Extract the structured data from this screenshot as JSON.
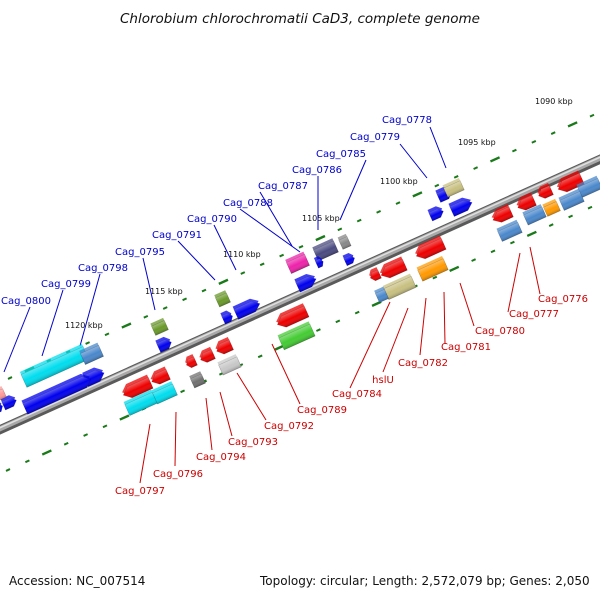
{
  "title": "Chlorobium chlorochromatii CaD3, complete genome",
  "accession": "Accession: NC_007514",
  "summary": "Topology: circular; Length: 2,572,079 bp; Genes: 2,050",
  "colors": {
    "plus_label": "#0000cc",
    "minus_label": "#cc0000",
    "tick": "#1a7a1a",
    "backbone": "#808080"
  },
  "ticks": [
    "1090 kbp",
    "1095 kbp",
    "1100 kbp",
    "1105 kbp",
    "1110 kbp",
    "1115 kbp",
    "1120 kbp"
  ],
  "plus_genes": [
    "Cag_0778",
    "Cag_0779",
    "Cag_0785",
    "Cag_0786",
    "Cag_0787",
    "Cag_0788",
    "Cag_0790",
    "Cag_0791",
    "Cag_0795",
    "Cag_0798",
    "Cag_0799",
    "Cag_0800"
  ],
  "minus_genes": [
    "Cag_0776",
    "Cag_0777",
    "Cag_0780",
    "Cag_0781",
    "Cag_0782",
    "hslU",
    "Cag_0784",
    "Cag_0789",
    "Cag_0792",
    "Cag_0793",
    "Cag_0794",
    "Cag_0796",
    "Cag_0797"
  ]
}
